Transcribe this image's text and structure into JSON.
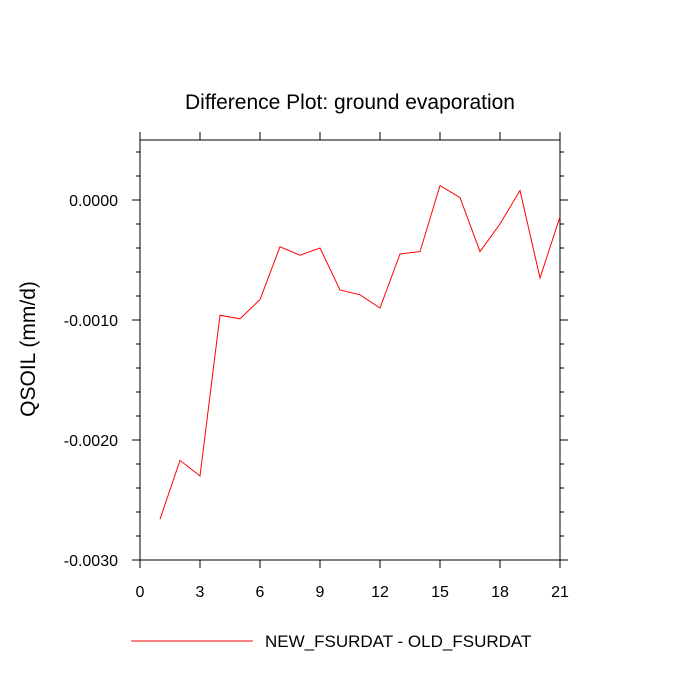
{
  "chart_data": {
    "type": "line",
    "title": "Difference Plot: ground evaporation",
    "xlabel": "",
    "ylabel": "QSOIL  (mm/d)",
    "xlim": [
      0,
      21
    ],
    "ylim": [
      -0.003,
      0.0005
    ],
    "x_ticks": [
      0,
      3,
      6,
      9,
      12,
      15,
      18,
      21
    ],
    "x_tick_labels": [
      "0",
      "3",
      "6",
      "9",
      "12",
      "15",
      "18",
      "21"
    ],
    "y_ticks": [
      -0.003,
      -0.002,
      -0.001,
      0.0
    ],
    "y_tick_labels": [
      "-0.0030",
      "-0.0020",
      "-0.0010",
      "0.0000"
    ],
    "legend_position": "bottom",
    "grid": false,
    "series": [
      {
        "name": "NEW_FSURDAT - OLD_FSURDAT",
        "color": "#ff0000",
        "x": [
          1,
          2,
          3,
          4,
          5,
          6,
          7,
          8,
          9,
          10,
          11,
          12,
          13,
          14,
          15,
          16,
          17,
          18,
          19,
          20,
          21
        ],
        "values": [
          -0.00266,
          -0.00217,
          -0.0023,
          -0.00096,
          -0.00099,
          -0.00083,
          -0.00039,
          -0.00046,
          -0.0004,
          -0.00075,
          -0.00079,
          -0.0009,
          -0.00045,
          -0.00043,
          0.00012,
          2e-05,
          -0.00043,
          -0.0002,
          8e-05,
          -0.00065,
          -0.00014
        ]
      }
    ]
  }
}
